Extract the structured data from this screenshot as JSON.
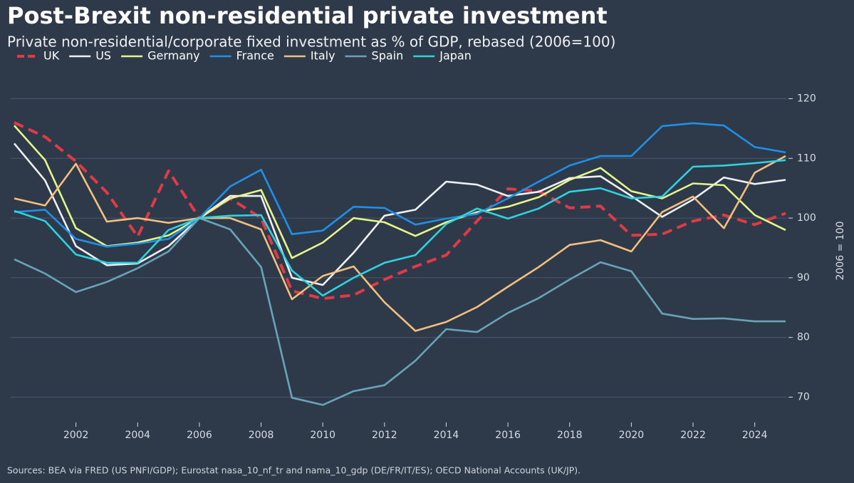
{
  "chart_data": {
    "type": "line",
    "title": "Post-Brexit non-residential private investment",
    "subtitle": "Private non-residential/corporate fixed investment as % of GDP, rebased (2006=100)",
    "y_label": "2006 = 100",
    "source": "Sources: BEA via FRED (US PNFI/GDP); Eurostat nasa_10_nf_tr and nama_10_gdp (DE/FR/IT/ES); OECD National Accounts (UK/JP).",
    "x": [
      2000,
      2001,
      2002,
      2003,
      2004,
      2005,
      2006,
      2007,
      2008,
      2009,
      2010,
      2011,
      2012,
      2013,
      2014,
      2015,
      2016,
      2017,
      2018,
      2019,
      2020,
      2021,
      2022,
      2023,
      2024,
      2025
    ],
    "xlim": [
      2000,
      2025
    ],
    "xticks": [
      2002,
      2004,
      2006,
      2008,
      2010,
      2012,
      2014,
      2016,
      2018,
      2020,
      2022,
      2024
    ],
    "ylim": [
      66,
      124
    ],
    "yticks": [
      70,
      80,
      90,
      100,
      110,
      120
    ],
    "y_axis_side": "right",
    "grid": true,
    "legend": "top-left",
    "series": [
      {
        "name": "UK",
        "color": "#e03a47",
        "line_style": "dashed",
        "values": [
          116,
          113.6,
          109.5,
          104.3,
          96.9,
          107.9,
          100,
          103.3,
          100,
          87.8,
          86.5,
          87.1,
          89.7,
          91.9,
          93.8,
          99.5,
          104.9,
          104.5,
          101.7,
          102,
          97.1,
          97.3,
          99.5,
          100.5,
          98.9,
          100.8
        ]
      },
      {
        "name": "US",
        "color": "#eef0f5",
        "values": [
          112.5,
          106.3,
          95.3,
          92.1,
          92.4,
          95.3,
          100,
          103.7,
          103.7,
          90,
          88.8,
          94.2,
          100.4,
          101.4,
          106.1,
          105.6,
          103.7,
          104.4,
          106.7,
          107,
          103.7,
          100.2,
          103.1,
          106.8,
          105.7,
          106.4
        ]
      },
      {
        "name": "Germany",
        "color": "#e4f58a",
        "values": [
          115.5,
          109.7,
          98.3,
          95.3,
          95.9,
          97.1,
          100,
          103.3,
          104.7,
          93.3,
          95.9,
          100,
          99.3,
          97,
          99.3,
          101,
          101.9,
          103.5,
          106.4,
          108.4,
          104.5,
          103.3,
          105.8,
          105.5,
          100.5,
          98
        ]
      },
      {
        "name": "France",
        "color": "#1e90e8",
        "values": [
          101,
          101.4,
          96.5,
          95.2,
          95.7,
          96.5,
          100,
          105.3,
          108.1,
          97.3,
          97.9,
          101.9,
          101.7,
          98.9,
          99.9,
          100.7,
          103.3,
          106.1,
          108.8,
          110.4,
          110.4,
          115.4,
          115.9,
          115.5,
          111.9,
          111
        ]
      },
      {
        "name": "Italy",
        "color": "#f2c07e",
        "values": [
          103.3,
          102.1,
          109.1,
          99.4,
          100,
          99.2,
          100,
          100,
          98.1,
          86.4,
          90.3,
          91.9,
          85.9,
          81.1,
          82.6,
          85.1,
          88.5,
          91.8,
          95.5,
          96.3,
          94.4,
          101,
          103.6,
          98.3,
          107.6,
          110.4
        ]
      },
      {
        "name": "Spain",
        "color": "#6aa3b8",
        "values": [
          93.1,
          90.7,
          87.6,
          89.3,
          91.6,
          94.4,
          100,
          98.1,
          91.8,
          69.9,
          68.7,
          71,
          72,
          76.1,
          81.4,
          80.9,
          84.1,
          86.6,
          89.7,
          92.6,
          91.1,
          84,
          83.1,
          83.2,
          82.7,
          82.7
        ]
      },
      {
        "name": "Japan",
        "color": "#2fd3e0",
        "values": [
          101.2,
          99.5,
          93.9,
          92.5,
          92.5,
          98,
          100,
          100.4,
          100.5,
          91.2,
          87,
          90,
          92.5,
          93.8,
          99,
          101.6,
          99.9,
          101.6,
          104.4,
          105,
          103.3,
          103.6,
          108.6,
          108.8,
          109.2,
          109.7
        ]
      }
    ]
  }
}
